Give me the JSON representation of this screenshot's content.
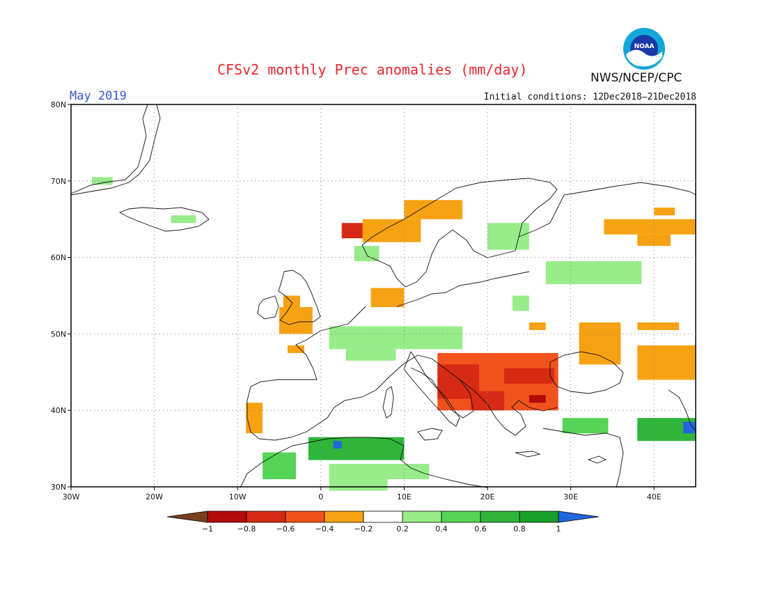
{
  "title": "CFSv2 monthly Prec anomalies (mm/day)",
  "month": "May 2019",
  "initial_conditions": "Initial conditions: 12Dec2018–21Dec2018",
  "agency": "NWS/NCEP/CPC",
  "logo_text": "NOAA",
  "map": {
    "lon_range": [
      -30,
      45
    ],
    "lat_range": [
      30,
      80
    ],
    "lon_ticks": [
      "30W",
      "20W",
      "10W",
      "0",
      "10E",
      "20E",
      "30E",
      "40E"
    ],
    "lat_ticks": [
      "30N",
      "40N",
      "50N",
      "60N",
      "70N",
      "80N"
    ],
    "grid": "dotted"
  },
  "colorbar": {
    "labels": [
      "−1",
      "−0.8",
      "−0.6",
      "−0.4",
      "−0.2",
      "0.2",
      "0.4",
      "0.6",
      "0.8",
      "1"
    ],
    "colors": [
      "#7a3f1f",
      "#b30a0a",
      "#d62a14",
      "#f2521b",
      "#f7a212",
      "#ffffff",
      "#98ec8a",
      "#55d455",
      "#2fb53a",
      "#18a02a",
      "#2266dd"
    ]
  },
  "chart_data": {
    "type": "heatmap",
    "title": "CFSv2 monthly Prec anomalies (mm/day)",
    "units": "mm/day",
    "regions": [
      {
        "lon": [
          -27.5,
          -25
        ],
        "lat": [
          69.5,
          70.5
        ],
        "value": 0.3
      },
      {
        "lon": [
          -18,
          -15
        ],
        "lat": [
          64.5,
          65.5
        ],
        "value": 0.3
      },
      {
        "lon": [
          -4.5,
          -2.5
        ],
        "lat": [
          53.5,
          55
        ],
        "value": -0.3
      },
      {
        "lon": [
          -5,
          -1
        ],
        "lat": [
          50,
          53.5
        ],
        "value": -0.3
      },
      {
        "lon": [
          -4,
          -2
        ],
        "lat": [
          47.5,
          48.5
        ],
        "value": -0.3
      },
      {
        "lon": [
          -9,
          -7
        ],
        "lat": [
          37,
          41
        ],
        "value": -0.3
      },
      {
        "lon": [
          2.5,
          7
        ],
        "lat": [
          62.5,
          64.5
        ],
        "value": -0.6
      },
      {
        "lon": [
          5,
          12
        ],
        "lat": [
          62,
          65
        ],
        "value": -0.3
      },
      {
        "lon": [
          10,
          17
        ],
        "lat": [
          65,
          67.5
        ],
        "value": -0.3
      },
      {
        "lon": [
          4,
          7
        ],
        "lat": [
          59.5,
          61.5
        ],
        "value": 0.3
      },
      {
        "lon": [
          6,
          10
        ],
        "lat": [
          53.5,
          56
        ],
        "value": -0.3
      },
      {
        "lon": [
          1,
          17
        ],
        "lat": [
          48,
          51
        ],
        "value": 0.3
      },
      {
        "lon": [
          3,
          9
        ],
        "lat": [
          46.5,
          48
        ],
        "value": 0.3
      },
      {
        "lon": [
          20,
          25
        ],
        "lat": [
          61,
          64.5
        ],
        "value": 0.3
      },
      {
        "lon": [
          27,
          38.5
        ],
        "lat": [
          56.5,
          59.5
        ],
        "value": 0.3
      },
      {
        "lon": [
          23,
          25
        ],
        "lat": [
          53,
          55
        ],
        "value": 0.3
      },
      {
        "lon": [
          34,
          45
        ],
        "lat": [
          63,
          65
        ],
        "value": -0.3
      },
      {
        "lon": [
          38,
          42
        ],
        "lat": [
          61.5,
          63
        ],
        "value": -0.3
      },
      {
        "lon": [
          40,
          42.5
        ],
        "lat": [
          65.5,
          66.5
        ],
        "value": -0.3
      },
      {
        "lon": [
          25,
          27
        ],
        "lat": [
          50.5,
          51.5
        ],
        "value": -0.3
      },
      {
        "lon": [
          31,
          36
        ],
        "lat": [
          46,
          51.5
        ],
        "value": -0.3
      },
      {
        "lon": [
          38,
          45
        ],
        "lat": [
          44,
          48.5
        ],
        "value": -0.3
      },
      {
        "lon": [
          38,
          43
        ],
        "lat": [
          50.5,
          51.5
        ],
        "value": -0.3
      },
      {
        "lon": [
          14,
          28.5
        ],
        "lat": [
          40,
          47.5
        ],
        "value": -0.4
      },
      {
        "lon": [
          14,
          19
        ],
        "lat": [
          41.5,
          46
        ],
        "value": -0.6
      },
      {
        "lon": [
          18,
          22
        ],
        "lat": [
          40,
          42.5
        ],
        "value": -0.6
      },
      {
        "lon": [
          22,
          28
        ],
        "lat": [
          43.5,
          45.5
        ],
        "value": -0.6
      },
      {
        "lon": [
          25,
          27
        ],
        "lat": [
          41,
          42
        ],
        "value": -0.8
      },
      {
        "lon": [
          29,
          34.5
        ],
        "lat": [
          37,
          39
        ],
        "value": 0.4
      },
      {
        "lon": [
          38,
          45
        ],
        "lat": [
          36,
          39
        ],
        "value": 0.6
      },
      {
        "lon": [
          43.5,
          45
        ],
        "lat": [
          37,
          38.5
        ],
        "value": 1.0
      },
      {
        "lon": [
          -7,
          -3
        ],
        "lat": [
          31,
          34.5
        ],
        "value": 0.4
      },
      {
        "lon": [
          -1.5,
          10
        ],
        "lat": [
          33.5,
          36.5
        ],
        "value": 0.6
      },
      {
        "lon": [
          1.5,
          2.5
        ],
        "lat": [
          35,
          36
        ],
        "value": 1.0
      },
      {
        "lon": [
          7,
          13
        ],
        "lat": [
          31,
          33
        ],
        "value": 0.3
      },
      {
        "lon": [
          1,
          8
        ],
        "lat": [
          29.5,
          33
        ],
        "value": 0.3
      }
    ]
  }
}
